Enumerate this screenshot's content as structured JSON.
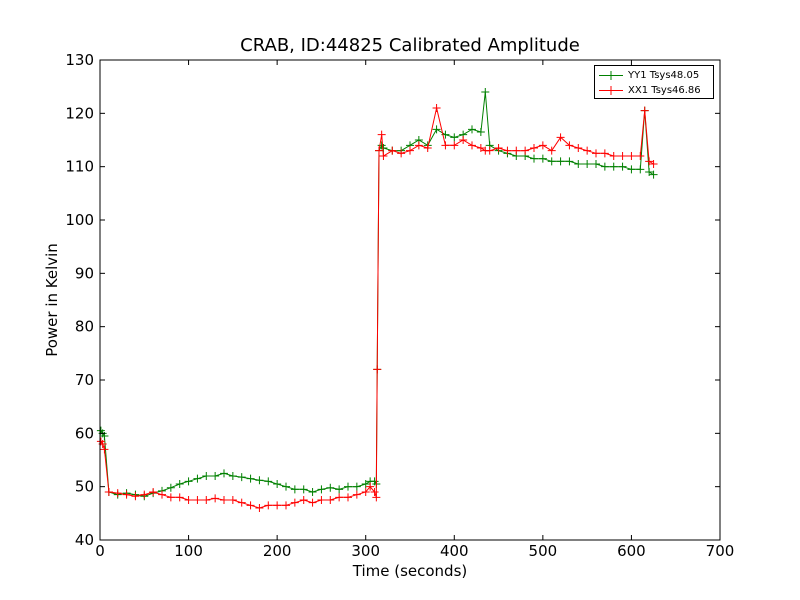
{
  "chart_data": {
    "type": "line",
    "title": "CRAB, ID:44825 Calibrated Amplitude",
    "xlabel": "Time (seconds)",
    "ylabel": "Power in Kelvin",
    "xlim": [
      0,
      700
    ],
    "ylim": [
      40,
      130
    ],
    "xticks": [
      "0",
      "100",
      "200",
      "300",
      "400",
      "500",
      "600",
      "700"
    ],
    "yticks": [
      "40",
      "50",
      "60",
      "70",
      "80",
      "90",
      "100",
      "110",
      "120",
      "130"
    ],
    "grid": false,
    "legend_position": "top-right",
    "marker": "+",
    "series": [
      {
        "name": "YY1 Tsys48.05",
        "color": "#008000",
        "x": [
          1,
          3,
          5,
          10,
          20,
          30,
          40,
          50,
          60,
          70,
          80,
          90,
          100,
          110,
          120,
          130,
          140,
          150,
          160,
          170,
          180,
          190,
          200,
          210,
          220,
          230,
          240,
          250,
          260,
          270,
          280,
          290,
          300,
          305,
          310,
          312,
          313,
          315,
          318,
          320,
          330,
          340,
          350,
          360,
          370,
          380,
          390,
          400,
          410,
          420,
          430,
          435,
          440,
          450,
          460,
          470,
          480,
          490,
          500,
          510,
          520,
          530,
          540,
          550,
          560,
          570,
          580,
          590,
          600,
          610,
          615,
          620,
          625
        ],
        "y": [
          60.5,
          60,
          59.5,
          49,
          48.5,
          48.8,
          48.5,
          48.2,
          48.8,
          49.2,
          49.8,
          50.5,
          51,
          51.5,
          52,
          52,
          52.5,
          52,
          51.8,
          51.5,
          51.2,
          51,
          50.5,
          50,
          49.5,
          49.5,
          49,
          49.5,
          49.8,
          49.5,
          50,
          50,
          50.5,
          51,
          51,
          50.5,
          72,
          113,
          114,
          113.5,
          113,
          113,
          114,
          115,
          114,
          117,
          116,
          115.5,
          116,
          117,
          116.5,
          124,
          114,
          113,
          112.5,
          112,
          112,
          111.5,
          111.5,
          111,
          111,
          111,
          110.5,
          110.5,
          110.5,
          110,
          110,
          110,
          109.5,
          109.5,
          120.5,
          109,
          108.5
        ]
      },
      {
        "name": "XX1 Tsys46.86",
        "color": "#ff0000",
        "x": [
          1,
          3,
          5,
          10,
          20,
          30,
          40,
          50,
          60,
          70,
          80,
          90,
          100,
          110,
          120,
          130,
          140,
          150,
          160,
          170,
          180,
          190,
          200,
          210,
          220,
          230,
          240,
          250,
          260,
          270,
          280,
          290,
          300,
          305,
          310,
          312,
          313,
          315,
          318,
          320,
          330,
          340,
          350,
          360,
          370,
          380,
          390,
          400,
          410,
          420,
          430,
          435,
          440,
          450,
          460,
          470,
          480,
          490,
          500,
          510,
          520,
          530,
          540,
          550,
          560,
          570,
          580,
          590,
          600,
          610,
          615,
          620,
          625
        ],
        "y": [
          58.5,
          58,
          57,
          49,
          48.8,
          48.5,
          48.2,
          48.5,
          49,
          48.5,
          48,
          48,
          47.5,
          47.5,
          47.5,
          47.8,
          47.5,
          47.5,
          47,
          46.5,
          46,
          46.5,
          46.5,
          46.5,
          47,
          47.5,
          47,
          47.5,
          47.5,
          48,
          48,
          48.5,
          49,
          50,
          49,
          48,
          72,
          113,
          116,
          112,
          113,
          112.5,
          113,
          114,
          113.5,
          121,
          114,
          114,
          115,
          114,
          113.5,
          113,
          113,
          113.5,
          113,
          113,
          113,
          113.5,
          114,
          113,
          115.5,
          114,
          113.5,
          113,
          112.5,
          112.5,
          112,
          112,
          112,
          112,
          120.5,
          111,
          110.5
        ]
      }
    ]
  }
}
